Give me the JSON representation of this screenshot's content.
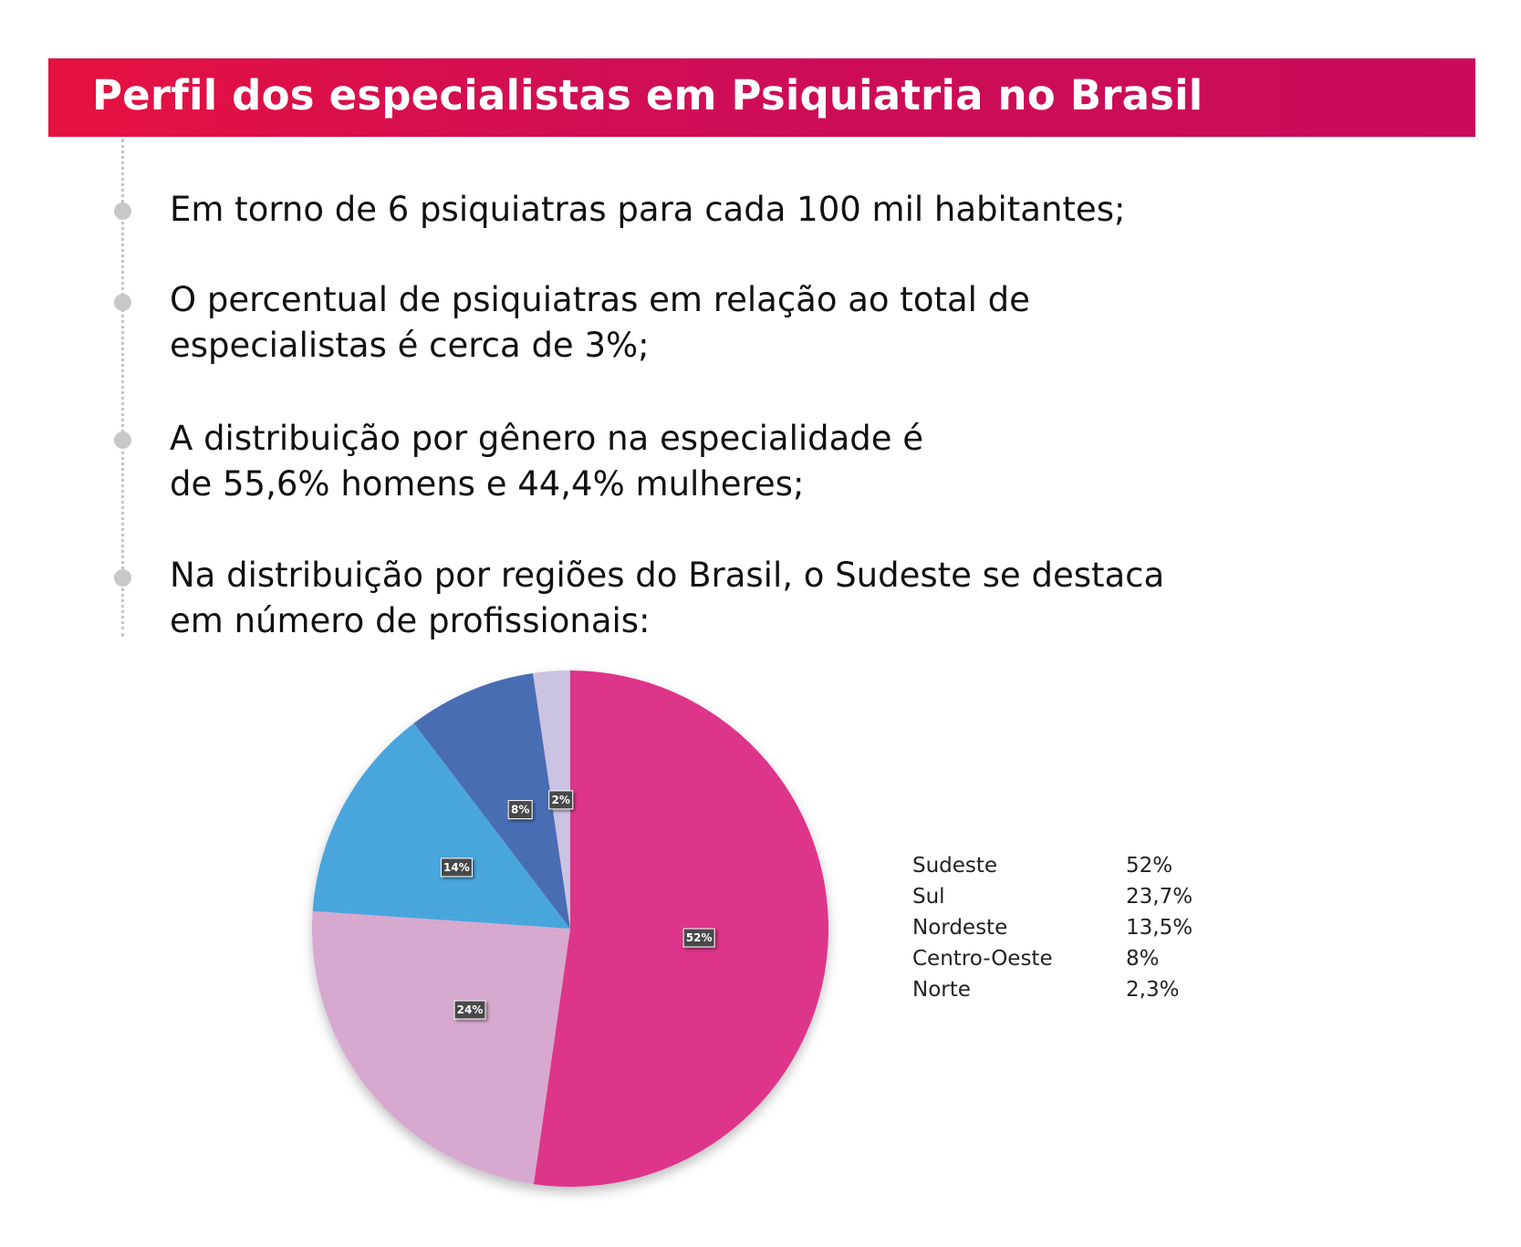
{
  "header": {
    "title": "Perfil dos especialistas em Psiquiatria no Brasil"
  },
  "points": [
    {
      "text": "Em torno de 6 psiquiatras para cada 100 mil habitantes;"
    },
    {
      "text": "O percentual de psiquiatras em relação ao total de\nespecialistas é cerca de 3%;"
    },
    {
      "text": "A distribuição por gênero na especialidade é\nde 55,6% homens e 44,4% mulheres;"
    },
    {
      "text": "Na distribuição por regiões do Brasil, o Sudeste se destaca\nem número de profissionais:"
    }
  ],
  "chart_data": {
    "type": "pie",
    "title": "",
    "categories": [
      "Sudeste",
      "Sul",
      "Nordeste",
      "Centro-Oeste",
      "Norte"
    ],
    "values": [
      52,
      23.7,
      13.5,
      8,
      2.3
    ],
    "data_labels": [
      "52%",
      "24%",
      "14%",
      "8%",
      "2%"
    ],
    "colors": [
      "#dd348a",
      "#d7a9cf",
      "#48a6dd",
      "#4a6db3",
      "#cbc3e2"
    ],
    "legend_position": "right",
    "start_angle": "12 o'clock",
    "direction": "clockwise"
  },
  "legend": [
    {
      "name": "Sudeste",
      "value": "52%"
    },
    {
      "name": "Sul",
      "value": "23,7%"
    },
    {
      "name": "Nordeste",
      "value": "13,5%"
    },
    {
      "name": "Centro-Oeste",
      "value": "8%"
    },
    {
      "name": "Norte",
      "value": "2,3%"
    }
  ],
  "colors": {
    "header_start": "#e5123f",
    "header_end": "#c90b58",
    "bullet": "#c8c8c8",
    "label_box": "#4a4a4a"
  }
}
